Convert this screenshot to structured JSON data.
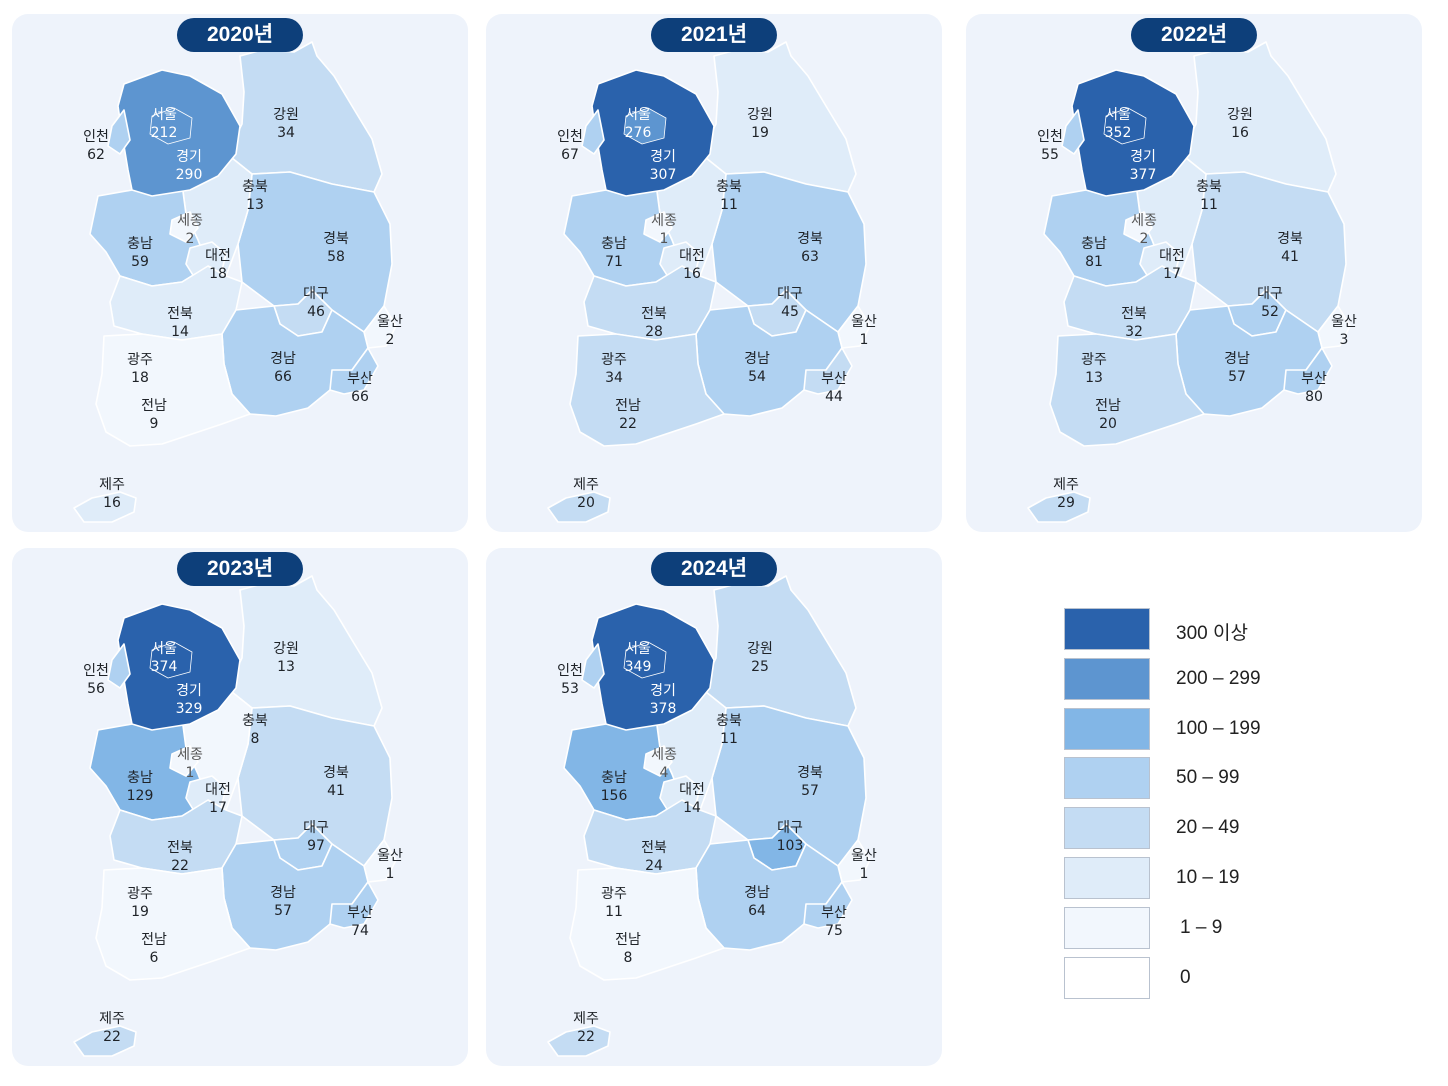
{
  "colors": {
    "c300": "#2a62ac",
    "c200": "#5d95d0",
    "c100": "#82b6e6",
    "c50": "#afd1f1",
    "c20": "#c4dcf3",
    "c10": "#dfecf9",
    "c1": "#f2f7fd",
    "c0": "#ffffff",
    "badge": "#0d3f7a",
    "panel_bg": "#eef3fb"
  },
  "legend": [
    {
      "label": "300 이상",
      "color": "#2a62ac"
    },
    {
      "label": "200 – 299",
      "color": "#5d95d0"
    },
    {
      "label": "100 – 199",
      "color": "#82b6e6"
    },
    {
      "label": "50 – 99",
      "color": "#afd1f1"
    },
    {
      "label": "20 – 49",
      "color": "#c4dcf3"
    },
    {
      "label": "10 – 19",
      "color": "#dfecf9"
    },
    {
      "label": "1 – 9",
      "color": "#f2f7fd"
    },
    {
      "label": "0",
      "color": "#ffffff"
    }
  ],
  "years": [
    {
      "label": "2020년",
      "regions": {
        "서울": "212",
        "경기": "290",
        "인천": "62",
        "강원": "34",
        "충북": "13",
        "세종": "2",
        "충남": "59",
        "대전": "18",
        "경북": "58",
        "대구": "46",
        "전북": "14",
        "울산": "2",
        "광주": "18",
        "경남": "66",
        "부산": "66",
        "전남": "9",
        "제주": "16"
      }
    },
    {
      "label": "2021년",
      "regions": {
        "서울": "276",
        "경기": "307",
        "인천": "67",
        "강원": "19",
        "충북": "11",
        "세종": "1",
        "충남": "71",
        "대전": "16",
        "경북": "63",
        "대구": "45",
        "전북": "28",
        "울산": "1",
        "광주": "34",
        "경남": "54",
        "부산": "44",
        "전남": "22",
        "제주": "20"
      }
    },
    {
      "label": "2022년",
      "regions": {
        "서울": "352",
        "경기": "377",
        "인천": "55",
        "강원": "16",
        "충북": "11",
        "세종": "2",
        "충남": "81",
        "대전": "17",
        "경북": "41",
        "대구": "52",
        "전북": "32",
        "울산": "3",
        "광주": "13",
        "경남": "57",
        "부산": "80",
        "전남": "20",
        "제주": "29"
      }
    },
    {
      "label": "2023년",
      "regions": {
        "서울": "374",
        "경기": "329",
        "인천": "56",
        "강원": "13",
        "충북": "8",
        "세종": "1",
        "충남": "129",
        "대전": "17",
        "경북": "41",
        "대구": "97",
        "전북": "22",
        "울산": "1",
        "광주": "19",
        "경남": "57",
        "부산": "74",
        "전남": "6",
        "제주": "22"
      }
    },
    {
      "label": "2024년",
      "regions": {
        "서울": "349",
        "경기": "378",
        "인천": "53",
        "강원": "25",
        "충북": "11",
        "세종": "4",
        "충남": "156",
        "대전": "14",
        "경북": "57",
        "대구": "103",
        "전북": "24",
        "울산": "1",
        "광주": "11",
        "경남": "64",
        "부산": "75",
        "전남": "8",
        "제주": "22"
      }
    }
  ]
}
